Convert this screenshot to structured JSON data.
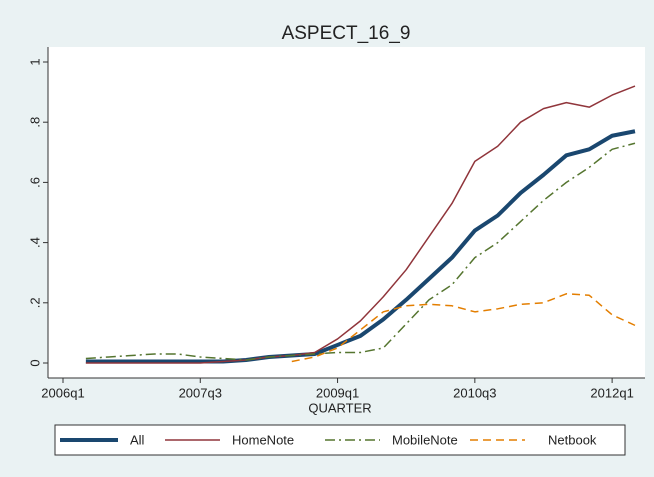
{
  "chart_data": {
    "type": "line",
    "title": "ASPECT_16_9",
    "x_label": "QUARTER",
    "categories": [
      "2006q1",
      null,
      null,
      null,
      null,
      null,
      "2007q3",
      null,
      null,
      null,
      null,
      null,
      "2009q1",
      null,
      null,
      null,
      null,
      null,
      "2010q3",
      null,
      null,
      null,
      null,
      null,
      "2012q1",
      null
    ],
    "series": [
      {
        "name": "All",
        "color": "#1a476f",
        "line_style": "solid",
        "line_width": 4,
        "values": [
          null,
          0.005,
          0.005,
          0.005,
          0.005,
          0.005,
          0.005,
          0.005,
          0.01,
          0.02,
          0.025,
          0.03,
          0.06,
          0.09,
          0.145,
          0.21,
          0.28,
          0.35,
          0.44,
          0.49,
          0.565,
          0.625,
          0.69,
          0.71,
          0.755,
          0.77
        ]
      },
      {
        "name": "HomeNote",
        "color": "#90353b",
        "line_style": "solid",
        "line_width": 1.5,
        "values": [
          null,
          0.0,
          0.0,
          0.0,
          0.0,
          0.0,
          0.0,
          0.005,
          0.01,
          0.02,
          0.025,
          0.035,
          0.08,
          0.14,
          0.22,
          0.31,
          0.42,
          0.53,
          0.67,
          0.72,
          0.8,
          0.845,
          0.865,
          0.85,
          0.89,
          0.92
        ]
      },
      {
        "name": "MobileNote",
        "color": "#55752f",
        "line_style": "dash-dot",
        "line_width": 1.5,
        "values": [
          null,
          0.015,
          0.02,
          0.025,
          0.03,
          0.03,
          0.02,
          0.015,
          0.01,
          0.02,
          0.025,
          0.03,
          0.035,
          0.035,
          0.05,
          0.13,
          0.21,
          0.26,
          0.35,
          0.4,
          0.47,
          0.54,
          0.6,
          0.65,
          0.71,
          0.73
        ]
      },
      {
        "name": "Netbook",
        "color": "#e37e00",
        "line_style": "dash",
        "line_width": 1.5,
        "values": [
          null,
          null,
          null,
          null,
          null,
          null,
          null,
          null,
          null,
          null,
          0.005,
          0.02,
          0.05,
          0.11,
          0.17,
          0.19,
          0.195,
          0.19,
          0.17,
          0.18,
          0.195,
          0.2,
          0.23,
          0.225,
          0.16,
          0.125
        ]
      }
    ],
    "ylim": [
      0,
      1
    ],
    "yticks": [
      0,
      {
        "value": 0.2,
        "label": ".2"
      },
      {
        "value": 0.4,
        "label": ".4"
      },
      {
        "value": 0.6,
        "label": ".6"
      },
      {
        "value": 0.8,
        "label": ".8"
      },
      1
    ],
    "legend": "bottom"
  }
}
